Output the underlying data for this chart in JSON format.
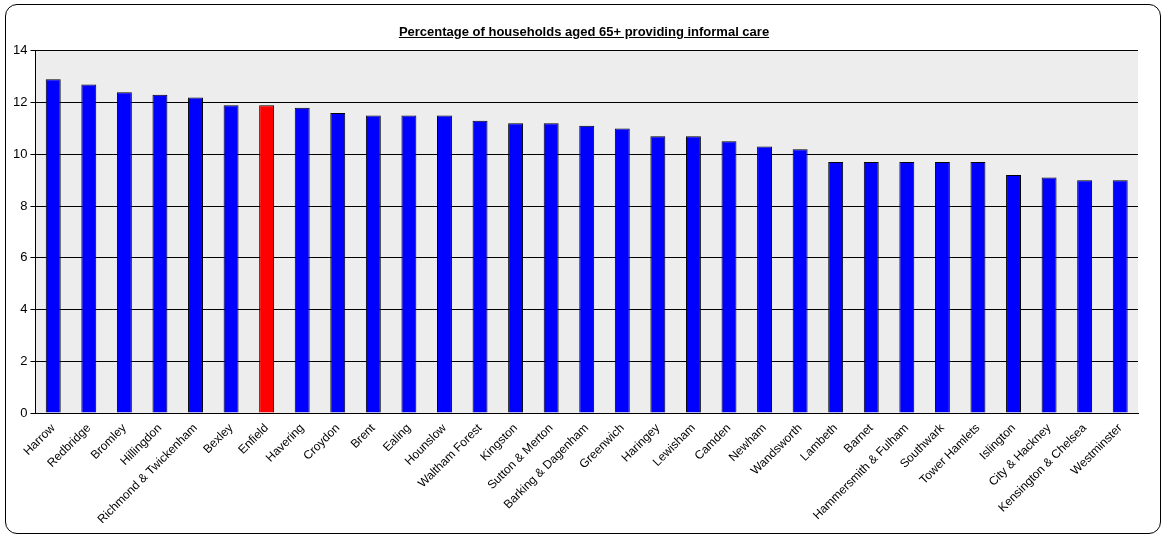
{
  "chart_data": {
    "type": "bar",
    "title": "Percentage of households aged 65+ providing informal care",
    "categories": [
      "Harrow",
      "Redbridge",
      "Bromley",
      "Hillingdon",
      "Richmond & Twickenham",
      "Bexley",
      "Enfield",
      "Havering",
      "Croydon",
      "Brent",
      "Ealing",
      "Hounslow",
      "Waltham Forest",
      "Kingston",
      "Sutton & Merton",
      "Barking & Dagenham",
      "Greenwich",
      "Haringey",
      "Lewisham",
      "Camden",
      "Newham",
      "Wandsworth",
      "Lambeth",
      "Barnet",
      "Hammersmith & Fulham",
      "Southwark",
      "Tower Hamlets",
      "Islington",
      "City & Hackney",
      "Kensington & Chelsea",
      "Westminster"
    ],
    "values": [
      12.9,
      12.7,
      12.4,
      12.3,
      12.2,
      11.9,
      11.9,
      11.8,
      11.6,
      11.5,
      11.5,
      11.5,
      11.3,
      11.2,
      11.2,
      11.1,
      11.0,
      10.7,
      10.7,
      10.5,
      10.3,
      10.2,
      9.7,
      9.7,
      9.7,
      9.7,
      9.7,
      9.2,
      9.1,
      9.0,
      9.0
    ],
    "colors": [
      "#0000ff",
      "#0000ff",
      "#0000ff",
      "#0000ff",
      "#0000ff",
      "#0000ff",
      "#ff0000",
      "#0000ff",
      "#0000ff",
      "#0000ff",
      "#0000ff",
      "#0000ff",
      "#0000ff",
      "#0000ff",
      "#0000ff",
      "#0000ff",
      "#0000ff",
      "#0000ff",
      "#0000ff",
      "#0000ff",
      "#0000ff",
      "#0000ff",
      "#0000ff",
      "#0000ff",
      "#0000ff",
      "#0000ff",
      "#0000ff",
      "#0000ff",
      "#0000ff",
      "#0000ff",
      "#0000ff"
    ],
    "ylim": [
      0,
      14
    ],
    "yticks": [
      0,
      2,
      4,
      6,
      8,
      10,
      12,
      14
    ],
    "grid": "y"
  }
}
